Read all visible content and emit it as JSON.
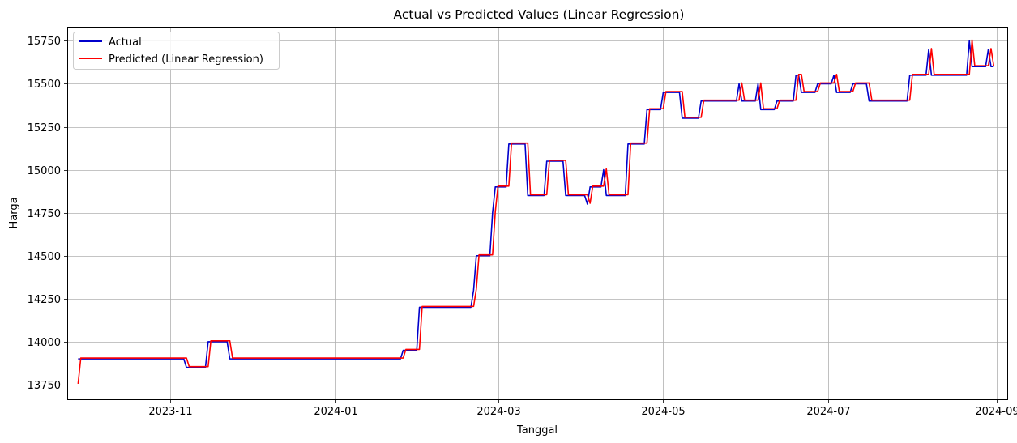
{
  "chart_data": {
    "type": "line",
    "title": "Actual vs Predicted Values (Linear Regression)",
    "xlabel": "Tanggal",
    "ylabel": "Harga",
    "x_range": [
      "2023-09-24",
      "2024-09-05"
    ],
    "ylim": [
      13665,
      15832
    ],
    "x_ticks": [
      {
        "date": "2023-11-01",
        "label": "2023-11"
      },
      {
        "date": "2024-01-01",
        "label": "2024-01"
      },
      {
        "date": "2024-03-01",
        "label": "2024-03"
      },
      {
        "date": "2024-05-01",
        "label": "2024-05"
      },
      {
        "date": "2024-07-01",
        "label": "2024-07"
      },
      {
        "date": "2024-09-01",
        "label": "2024-09"
      }
    ],
    "y_ticks": [
      13750,
      14000,
      14250,
      14500,
      14750,
      15000,
      15250,
      15500,
      15750
    ],
    "grid": true,
    "legend_position": "top-left",
    "series": [
      {
        "name": "Actual",
        "color": "#0000cc",
        "points": [
          [
            "2023-09-28",
            13900
          ],
          [
            "2023-11-06",
            13900
          ],
          [
            "2023-11-07",
            13850
          ],
          [
            "2023-11-14",
            13850
          ],
          [
            "2023-11-15",
            14000
          ],
          [
            "2023-11-22",
            14000
          ],
          [
            "2023-11-23",
            13900
          ],
          [
            "2024-01-25",
            13900
          ],
          [
            "2024-01-26",
            13950
          ],
          [
            "2024-01-31",
            13950
          ],
          [
            "2024-02-01",
            14200
          ],
          [
            "2024-02-20",
            14200
          ],
          [
            "2024-02-21",
            14300
          ],
          [
            "2024-02-22",
            14500
          ],
          [
            "2024-02-27",
            14500
          ],
          [
            "2024-02-28",
            14750
          ],
          [
            "2024-02-29",
            14900
          ],
          [
            "2024-03-04",
            14900
          ],
          [
            "2024-03-05",
            15150
          ],
          [
            "2024-03-11",
            15150
          ],
          [
            "2024-03-12",
            14850
          ],
          [
            "2024-03-18",
            14850
          ],
          [
            "2024-03-19",
            15050
          ],
          [
            "2024-03-25",
            15050
          ],
          [
            "2024-03-26",
            14850
          ],
          [
            "2024-04-02",
            14850
          ],
          [
            "2024-04-03",
            14800
          ],
          [
            "2024-04-04",
            14900
          ],
          [
            "2024-04-08",
            14900
          ],
          [
            "2024-04-09",
            15000
          ],
          [
            "2024-04-10",
            14850
          ],
          [
            "2024-04-16",
            14850
          ],
          [
            "2024-04-18",
            15150
          ],
          [
            "2024-04-24",
            15150
          ],
          [
            "2024-04-25",
            15350
          ],
          [
            "2024-04-30",
            15350
          ],
          [
            "2024-05-01",
            15450
          ],
          [
            "2024-05-07",
            15450
          ],
          [
            "2024-05-08",
            15300
          ],
          [
            "2024-05-14",
            15300
          ],
          [
            "2024-05-15",
            15400
          ],
          [
            "2024-05-28",
            15400
          ],
          [
            "2024-05-29",
            15500
          ],
          [
            "2024-05-30",
            15400
          ],
          [
            "2024-06-04",
            15400
          ],
          [
            "2024-06-05",
            15500
          ],
          [
            "2024-06-06",
            15350
          ],
          [
            "2024-06-11",
            15350
          ],
          [
            "2024-06-12",
            15400
          ],
          [
            "2024-06-18",
            15400
          ],
          [
            "2024-06-19",
            15550
          ],
          [
            "2024-06-21",
            15450
          ],
          [
            "2024-06-25",
            15450
          ],
          [
            "2024-06-27",
            15500
          ],
          [
            "2024-07-02",
            15500
          ],
          [
            "2024-07-03",
            15550
          ],
          [
            "2024-07-04",
            15450
          ],
          [
            "2024-07-09",
            15450
          ],
          [
            "2024-07-10",
            15500
          ],
          [
            "2024-07-15",
            15500
          ],
          [
            "2024-07-16",
            15400
          ],
          [
            "2024-07-29",
            15400
          ],
          [
            "2024-07-31",
            15550
          ],
          [
            "2024-08-06",
            15550
          ],
          [
            "2024-08-07",
            15700
          ],
          [
            "2024-08-08",
            15550
          ],
          [
            "2024-08-21",
            15550
          ],
          [
            "2024-08-22",
            15750
          ],
          [
            "2024-08-23",
            15600
          ],
          [
            "2024-08-28",
            15600
          ],
          [
            "2024-08-29",
            15700
          ],
          [
            "2024-08-30",
            15600
          ],
          [
            "2024-08-31",
            15600
          ]
        ]
      },
      {
        "name": "Predicted (Linear Regression)",
        "color": "#ff0000",
        "points": [
          [
            "2023-09-28",
            13755
          ],
          [
            "2023-09-29",
            13905
          ],
          [
            "2023-11-07",
            13905
          ],
          [
            "2023-11-08",
            13855
          ],
          [
            "2023-11-15",
            13855
          ],
          [
            "2023-11-16",
            14005
          ],
          [
            "2023-11-23",
            14005
          ],
          [
            "2023-11-24",
            13905
          ],
          [
            "2024-01-26",
            13905
          ],
          [
            "2024-01-27",
            13955
          ],
          [
            "2024-02-01",
            13955
          ],
          [
            "2024-02-02",
            14205
          ],
          [
            "2024-02-21",
            14205
          ],
          [
            "2024-02-22",
            14305
          ],
          [
            "2024-02-23",
            14505
          ],
          [
            "2024-02-28",
            14505
          ],
          [
            "2024-02-29",
            14755
          ],
          [
            "2024-03-01",
            14905
          ],
          [
            "2024-03-05",
            14905
          ],
          [
            "2024-03-06",
            15155
          ],
          [
            "2024-03-12",
            15155
          ],
          [
            "2024-03-13",
            14855
          ],
          [
            "2024-03-19",
            14855
          ],
          [
            "2024-03-20",
            15055
          ],
          [
            "2024-03-26",
            15055
          ],
          [
            "2024-03-27",
            14855
          ],
          [
            "2024-04-03",
            14855
          ],
          [
            "2024-04-04",
            14805
          ],
          [
            "2024-04-05",
            14905
          ],
          [
            "2024-04-09",
            14905
          ],
          [
            "2024-04-10",
            15005
          ],
          [
            "2024-04-11",
            14855
          ],
          [
            "2024-04-17",
            14855
          ],
          [
            "2024-04-19",
            15155
          ],
          [
            "2024-04-25",
            15155
          ],
          [
            "2024-04-26",
            15355
          ],
          [
            "2024-05-01",
            15355
          ],
          [
            "2024-05-02",
            15455
          ],
          [
            "2024-05-08",
            15455
          ],
          [
            "2024-05-09",
            15305
          ],
          [
            "2024-05-15",
            15305
          ],
          [
            "2024-05-16",
            15405
          ],
          [
            "2024-05-29",
            15405
          ],
          [
            "2024-05-30",
            15505
          ],
          [
            "2024-05-31",
            15405
          ],
          [
            "2024-06-05",
            15405
          ],
          [
            "2024-06-06",
            15505
          ],
          [
            "2024-06-07",
            15355
          ],
          [
            "2024-06-12",
            15355
          ],
          [
            "2024-06-13",
            15405
          ],
          [
            "2024-06-19",
            15405
          ],
          [
            "2024-06-20",
            15555
          ],
          [
            "2024-06-22",
            15455
          ],
          [
            "2024-06-26",
            15455
          ],
          [
            "2024-06-28",
            15505
          ],
          [
            "2024-07-03",
            15505
          ],
          [
            "2024-07-04",
            15555
          ],
          [
            "2024-07-05",
            15455
          ],
          [
            "2024-07-10",
            15455
          ],
          [
            "2024-07-11",
            15505
          ],
          [
            "2024-07-16",
            15505
          ],
          [
            "2024-07-17",
            15405
          ],
          [
            "2024-07-30",
            15405
          ],
          [
            "2024-08-01",
            15555
          ],
          [
            "2024-08-07",
            15555
          ],
          [
            "2024-08-08",
            15705
          ],
          [
            "2024-08-09",
            15555
          ],
          [
            "2024-08-22",
            15555
          ],
          [
            "2024-08-23",
            15755
          ],
          [
            "2024-08-24",
            15605
          ],
          [
            "2024-08-29",
            15605
          ],
          [
            "2024-08-30",
            15705
          ],
          [
            "2024-08-31",
            15605
          ]
        ]
      }
    ]
  }
}
